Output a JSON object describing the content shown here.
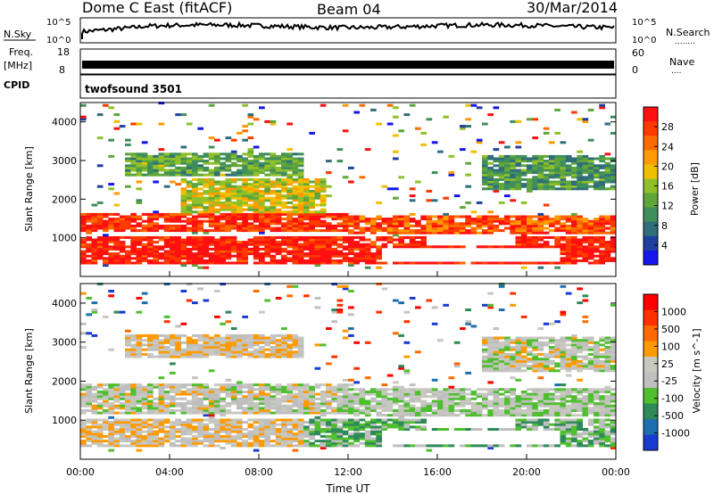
{
  "header": {
    "title": "Dome C East (fitACF)",
    "beam": "Beam 04",
    "date": "30/Mar/2014"
  },
  "side_labels": {
    "nsky": "N.Sky",
    "nsearch": "N.Search",
    "freq_top": "Freq.",
    "freq_unit": "[MHz]",
    "cpid": "CPID",
    "nave": "Nave",
    "dots_long": "........",
    "dots_short": "...."
  },
  "noise_axis": {
    "left_ticks": [
      "10^5",
      "10^0"
    ],
    "right_ticks": [
      "10^5",
      "10^0"
    ]
  },
  "freq_axis": {
    "left_ticks": [
      "18",
      "8"
    ],
    "right_ticks": [
      "60",
      "0"
    ]
  },
  "cpid_label": "twofsound 3501",
  "chart_data": [
    {
      "type": "heatmap",
      "title": "",
      "xlabel": "",
      "ylabel": "Slant Range [km]",
      "x_ticks": [
        "00:00",
        "04:00",
        "08:00",
        "12:00",
        "16:00",
        "20:00",
        "00:00"
      ],
      "y_ticks": [
        "1000",
        "2000",
        "3000",
        "4000"
      ],
      "colorbar": {
        "label": "Power [dB]",
        "ticks": [
          "4",
          "8",
          "12",
          "16",
          "20",
          "24",
          "28"
        ],
        "colors": [
          "#1515ee",
          "#1f3fa0",
          "#2f6e7a",
          "#3f8f5c",
          "#5fa53a",
          "#8fc02a",
          "#f0c000",
          "#ff9a00",
          "#ff6a00",
          "#ff3a00",
          "#ff1010"
        ]
      },
      "ylim": [
        0,
        4500
      ],
      "xlim_hours": [
        0,
        24
      ],
      "bands": [
        {
          "t": [
            0.0,
            24.0
          ],
          "r": [
            300,
            1000
          ],
          "value": 0.95
        },
        {
          "t": [
            0.0,
            12.0
          ],
          "r": [
            1150,
            1600
          ],
          "value": 0.9
        },
        {
          "t": [
            12.0,
            24.0
          ],
          "r": [
            1100,
            1550
          ],
          "value": 0.82
        },
        {
          "t": [
            4.5,
            11.0
          ],
          "r": [
            1600,
            2500
          ],
          "value": 0.55
        },
        {
          "t": [
            2.0,
            10.0
          ],
          "r": [
            2600,
            3200
          ],
          "value": 0.4
        },
        {
          "t": [
            18.0,
            24.0
          ],
          "r": [
            2200,
            3100
          ],
          "value": 0.35
        }
      ],
      "gaps": [
        {
          "t": [
            13.5,
            21.5
          ],
          "r": [
            350,
            700
          ]
        },
        {
          "t": [
            15.5,
            19.5
          ],
          "r": [
            750,
            1050
          ]
        }
      ]
    },
    {
      "type": "heatmap",
      "title": "",
      "xlabel": "Time UT",
      "ylabel": "Slant Range [km]",
      "x_ticks": [
        "00:00",
        "04:00",
        "08:00",
        "12:00",
        "16:00",
        "20:00",
        "00:00"
      ],
      "y_ticks": [
        "1000",
        "2000",
        "3000",
        "4000"
      ],
      "colorbar": {
        "label": "Velocity [m s^-1]",
        "ticks": [
          "1000",
          "500",
          "100",
          "25",
          "-25",
          "-100",
          "-500",
          "-1000"
        ],
        "colors": [
          "#1a3bd0",
          "#1f6eb0",
          "#2f8a5a",
          "#4fbf2f",
          "#bfbfbf",
          "#c8c8c0",
          "#ff9a00",
          "#ff6a00",
          "#ff3000",
          "#ff0000"
        ]
      },
      "ylim": [
        0,
        4500
      ],
      "xlim_hours": [
        0,
        24
      ],
      "bands": [
        {
          "t": [
            0.0,
            10.0
          ],
          "r": [
            300,
            1000
          ],
          "value": 0.55
        },
        {
          "t": [
            10.0,
            24.0
          ],
          "r": [
            300,
            1000
          ],
          "value": 0.35
        },
        {
          "t": [
            0.0,
            12.0
          ],
          "r": [
            1150,
            1900
          ],
          "value": 0.5
        },
        {
          "t": [
            12.0,
            24.0
          ],
          "r": [
            1100,
            1800
          ],
          "value": 0.45
        },
        {
          "t": [
            2.0,
            10.0
          ],
          "r": [
            2600,
            3200
          ],
          "value": 0.55
        },
        {
          "t": [
            18.0,
            24.0
          ],
          "r": [
            2200,
            3100
          ],
          "value": 0.5
        }
      ],
      "gaps": [
        {
          "t": [
            13.5,
            21.5
          ],
          "r": [
            350,
            700
          ]
        },
        {
          "t": [
            15.5,
            19.5
          ],
          "r": [
            750,
            1050
          ]
        }
      ]
    }
  ]
}
